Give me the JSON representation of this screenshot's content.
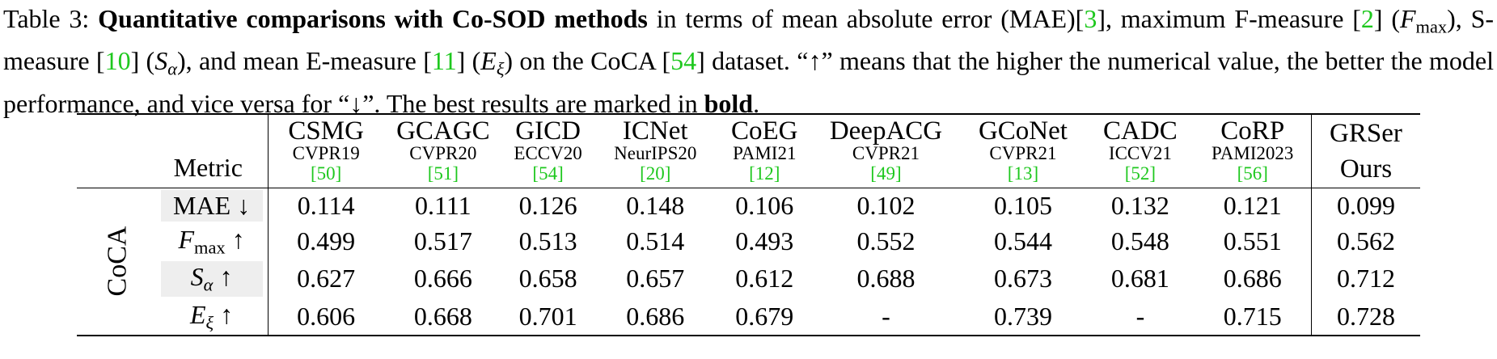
{
  "caption": {
    "label": "Table 3:",
    "bold_title": "Quantitative comparisons with Co-SOD methods",
    "part1": " in terms of mean absolute error (MAE)[",
    "ref_mae": "3",
    "part2": "], maximum F-measure [",
    "ref_fmax": "2",
    "part3": "] (",
    "fmax_symbol": "F",
    "fmax_sub": "max",
    "part4": "), S-measure [",
    "ref_smeasure": "10",
    "part5": "] (",
    "s_symbol": "S",
    "s_sub": "α",
    "part6": "), and mean E-measure [",
    "ref_emeasure": "11",
    "part7": "] (",
    "e_symbol": "E",
    "e_sub": "ξ",
    "part8": ") on the CoCA [",
    "ref_coca": "54",
    "part9": "] dataset. “↑” means that the higher the numerical value, the better the model performance, and vice versa for “↓”. The best results are marked in ",
    "bold_word": "bold",
    "part10": "."
  },
  "table": {
    "metric_header": "Metric",
    "dataset": "CoCA",
    "methods": [
      {
        "name": "CSMG",
        "venue": "CVPR19",
        "ref": "[50]"
      },
      {
        "name": "GCAGC",
        "venue": "CVPR20",
        "ref": "[51]"
      },
      {
        "name": "GICD",
        "venue": "ECCV20",
        "ref": "[54]"
      },
      {
        "name": "ICNet",
        "venue": "NeurIPS20",
        "ref": "[20]"
      },
      {
        "name": "CoEG",
        "venue": "PAMI21",
        "ref": "[12]"
      },
      {
        "name": "DeepACG",
        "venue": "CVPR21",
        "ref": "[49]"
      },
      {
        "name": "GCoNet",
        "venue": "CVPR21",
        "ref": "[13]"
      },
      {
        "name": "CADC",
        "venue": "ICCV21",
        "ref": "[52]"
      },
      {
        "name": "CoRP",
        "venue": "PAMI2023",
        "ref": "[56]"
      }
    ],
    "ours": {
      "name": "GRSer",
      "label": "Ours"
    },
    "rows": [
      {
        "metric": "MAE",
        "metric_sub": "",
        "arrow": "↓",
        "values": [
          "0.114",
          "0.111",
          "0.126",
          "0.148",
          "0.106",
          "0.102",
          "0.105",
          "0.132",
          "0.121"
        ],
        "ours": "0.099"
      },
      {
        "metric": "F",
        "metric_sub": "max",
        "arrow": "↑",
        "values": [
          "0.499",
          "0.517",
          "0.513",
          "0.514",
          "0.493",
          "0.552",
          "0.544",
          "0.548",
          "0.551"
        ],
        "ours": "0.562"
      },
      {
        "metric": "S",
        "metric_sub": "α",
        "arrow": "↑",
        "values": [
          "0.627",
          "0.666",
          "0.658",
          "0.657",
          "0.612",
          "0.688",
          "0.673",
          "0.681",
          "0.686"
        ],
        "ours": "0.712"
      },
      {
        "metric": "E",
        "metric_sub": "ξ",
        "arrow": "↑",
        "values": [
          "0.606",
          "0.668",
          "0.701",
          "0.686",
          "0.679",
          "-",
          "0.739",
          "-",
          "0.715"
        ],
        "ours": "0.728"
      }
    ]
  }
}
